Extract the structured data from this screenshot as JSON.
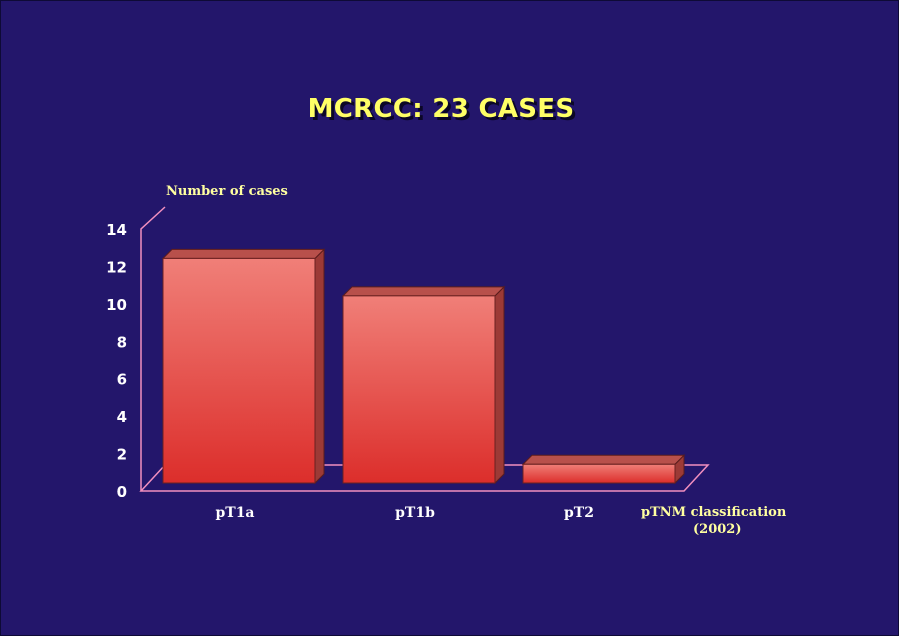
{
  "chart_data": {
    "type": "bar",
    "title": "MCRCC: 23 CASES",
    "ylabel": "Number of cases",
    "xlabel": [
      "pTNM classification",
      "(2002)"
    ],
    "categories": [
      "pT1a",
      "pT1b",
      "pT2"
    ],
    "values": [
      12,
      10,
      1
    ],
    "ylim": [
      0,
      14
    ],
    "yticks": [
      0,
      2,
      4,
      6,
      8,
      10,
      12,
      14
    ],
    "style": "3d",
    "colors": {
      "background": "#23166b",
      "title": "#ffff66",
      "bar_top": "#f07f78",
      "bar_bottom": "#dc2e2b",
      "axis_frame": "#f18fbf"
    }
  }
}
